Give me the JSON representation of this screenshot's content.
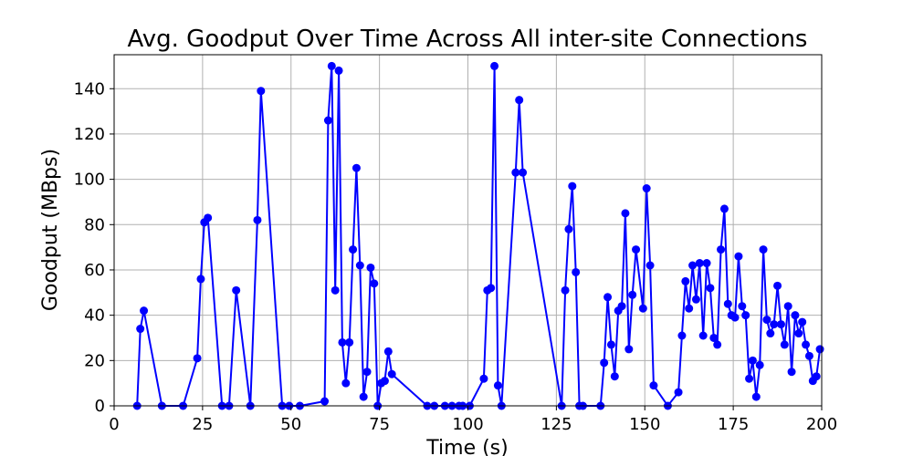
{
  "chart_data": {
    "type": "line",
    "title": "Avg. Goodput Over Time Across All inter-site Connections",
    "xlabel": "Time (s)",
    "ylabel": "Goodput (MBps)",
    "xlim": [
      0,
      200
    ],
    "ylim": [
      0,
      155
    ],
    "xticks": [
      0,
      25,
      50,
      75,
      100,
      125,
      150,
      175,
      200
    ],
    "yticks": [
      0,
      20,
      40,
      60,
      80,
      100,
      120,
      140
    ],
    "grid": true,
    "series": [
      {
        "color": "#0000ff",
        "marker": "circle",
        "x": [
          6.5,
          7.4,
          8.4,
          13.5,
          19.5,
          23.5,
          24.5,
          25.5,
          26.5,
          30.5,
          32.5,
          34.5,
          38.5,
          40.5,
          41.5,
          47.5,
          49.5,
          52.5,
          59.5,
          60.5,
          61.5,
          62.5,
          63.5,
          64.5,
          65.5,
          66.5,
          67.5,
          68.5,
          69.5,
          70.5,
          71.5,
          72.5,
          73.5,
          74.5,
          75.5,
          76.5,
          77.5,
          78.5,
          88.5,
          90.5,
          93.5,
          95.5,
          97.5,
          98.5,
          100.5,
          104.5,
          105.5,
          106.5,
          107.5,
          108.5,
          109.5,
          113.5,
          114.5,
          115.5,
          126.5,
          127.5,
          128.5,
          129.5,
          130.5,
          131.5,
          132.5,
          137.5,
          138.5,
          139.5,
          140.5,
          141.5,
          142.5,
          143.5,
          144.5,
          145.5,
          146.5,
          147.5,
          149.5,
          150.5,
          151.5,
          152.5,
          156.5,
          159.5,
          160.5,
          161.5,
          162.5,
          163.5,
          164.5,
          165.5,
          166.5,
          167.5,
          168.5,
          169.5,
          170.5,
          171.5,
          172.5,
          173.5,
          174.5,
          175.5,
          176.5,
          177.5,
          178.5,
          179.5,
          180.5,
          181.5,
          182.5,
          183.5,
          184.5,
          185.5,
          186.5,
          187.5,
          188.5,
          189.5,
          190.5,
          191.5,
          192.5,
          193.5,
          194.5,
          195.5,
          196.5,
          197.5,
          198.5,
          199.5
        ],
        "y": [
          0,
          34,
          42,
          0,
          0,
          21,
          56,
          81,
          83,
          0,
          0,
          51,
          0,
          82,
          139,
          0,
          0,
          0,
          2,
          126,
          150,
          51,
          148,
          28,
          10,
          28,
          69,
          105,
          62,
          4,
          15,
          61,
          54,
          0,
          10,
          11,
          24,
          14,
          0,
          0,
          0,
          0,
          0,
          0,
          0,
          12,
          51,
          52,
          150,
          9,
          0,
          103,
          135,
          103,
          0,
          51,
          78,
          97,
          59,
          0,
          0,
          0,
          19,
          48,
          27,
          13,
          42,
          44,
          85,
          25,
          49,
          69,
          43,
          96,
          62,
          9,
          0,
          6,
          31,
          55,
          43,
          62,
          47,
          63,
          31,
          63,
          52,
          30,
          27,
          69,
          87,
          45,
          40,
          39,
          66,
          44,
          40,
          12,
          20,
          4,
          18,
          69,
          38,
          32,
          36,
          53,
          36,
          27,
          44,
          15,
          40,
          32,
          37,
          27,
          22,
          11,
          13,
          25
        ]
      }
    ]
  }
}
